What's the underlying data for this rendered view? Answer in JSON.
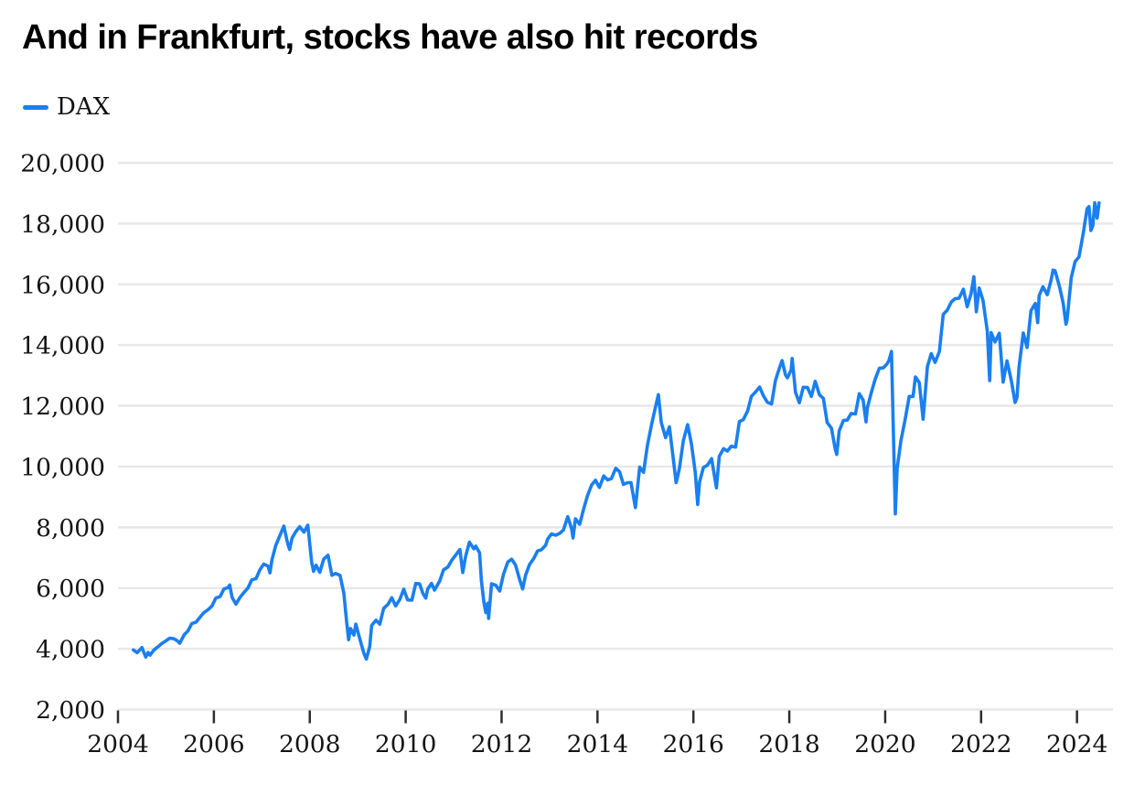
{
  "header": {
    "title": "And in Frankfurt, stocks have also hit records"
  },
  "legend": {
    "series_label": "DAX",
    "swatch_color": "#1a7ff0"
  },
  "colors": {
    "line": "#1a7ff0",
    "grid": "#e8e8e8",
    "tick_mark": "#2e2e2e",
    "axis_text": "#141414",
    "title_text": "#000000",
    "background": "#ffffff"
  },
  "chart_data": {
    "type": "line",
    "title": "And in Frankfurt, stocks have also hit records",
    "legend_position": "top-left",
    "grid": "horizontal-only",
    "x_axis": {
      "label": "",
      "tick_years": [
        2004,
        2006,
        2008,
        2010,
        2012,
        2014,
        2016,
        2018,
        2020,
        2022,
        2024
      ],
      "tick_labels": [
        "2004",
        "2006",
        "2008",
        "2010",
        "2012",
        "2014",
        "2016",
        "2018",
        "2020",
        "2022",
        "2024"
      ],
      "range": [
        2004,
        2024.75
      ]
    },
    "y_axis": {
      "label": "",
      "tick_values": [
        2000,
        4000,
        6000,
        8000,
        10000,
        12000,
        14000,
        16000,
        18000,
        20000
      ],
      "tick_labels": [
        "2,000",
        "4,000",
        "6,000",
        "8,000",
        "10,000",
        "12,000",
        "14,000",
        "16,000",
        "18,000",
        "20,000"
      ],
      "range": [
        2000,
        20000
      ]
    },
    "series": [
      {
        "name": "DAX",
        "color": "#1a7ff0",
        "points": [
          [
            2004.32,
            3960
          ],
          [
            2004.4,
            3870
          ],
          [
            2004.5,
            4040
          ],
          [
            2004.58,
            3725
          ],
          [
            2004.63,
            3880
          ],
          [
            2004.67,
            3790
          ],
          [
            2004.75,
            3960
          ],
          [
            2004.83,
            4060
          ],
          [
            2004.92,
            4180
          ],
          [
            2005.0,
            4260
          ],
          [
            2005.08,
            4350
          ],
          [
            2005.17,
            4330
          ],
          [
            2005.25,
            4250
          ],
          [
            2005.29,
            4180
          ],
          [
            2005.38,
            4460
          ],
          [
            2005.46,
            4590
          ],
          [
            2005.54,
            4830
          ],
          [
            2005.63,
            4880
          ],
          [
            2005.71,
            5040
          ],
          [
            2005.79,
            5190
          ],
          [
            2005.88,
            5290
          ],
          [
            2005.96,
            5410
          ],
          [
            2006.04,
            5670
          ],
          [
            2006.13,
            5720
          ],
          [
            2006.21,
            5970
          ],
          [
            2006.29,
            6010
          ],
          [
            2006.33,
            6100
          ],
          [
            2006.38,
            5690
          ],
          [
            2006.46,
            5470
          ],
          [
            2006.54,
            5680
          ],
          [
            2006.63,
            5860
          ],
          [
            2006.71,
            6000
          ],
          [
            2006.79,
            6270
          ],
          [
            2006.88,
            6310
          ],
          [
            2006.96,
            6600
          ],
          [
            2007.04,
            6790
          ],
          [
            2007.13,
            6720
          ],
          [
            2007.17,
            6500
          ],
          [
            2007.21,
            6920
          ],
          [
            2007.29,
            7400
          ],
          [
            2007.38,
            7740
          ],
          [
            2007.46,
            8040
          ],
          [
            2007.54,
            7460
          ],
          [
            2007.58,
            7270
          ],
          [
            2007.63,
            7640
          ],
          [
            2007.71,
            7860
          ],
          [
            2007.79,
            8020
          ],
          [
            2007.88,
            7840
          ],
          [
            2007.96,
            8070
          ],
          [
            2008.04,
            6850
          ],
          [
            2008.08,
            6550
          ],
          [
            2008.13,
            6750
          ],
          [
            2008.21,
            6520
          ],
          [
            2008.29,
            6950
          ],
          [
            2008.38,
            7080
          ],
          [
            2008.46,
            6420
          ],
          [
            2008.54,
            6480
          ],
          [
            2008.63,
            6420
          ],
          [
            2008.71,
            5830
          ],
          [
            2008.77,
            4870
          ],
          [
            2008.81,
            4300
          ],
          [
            2008.85,
            4670
          ],
          [
            2008.92,
            4450
          ],
          [
            2008.96,
            4810
          ],
          [
            2009.04,
            4340
          ],
          [
            2009.13,
            3840
          ],
          [
            2009.18,
            3660
          ],
          [
            2009.25,
            4080
          ],
          [
            2009.29,
            4770
          ],
          [
            2009.38,
            4940
          ],
          [
            2009.46,
            4810
          ],
          [
            2009.54,
            5330
          ],
          [
            2009.63,
            5460
          ],
          [
            2009.71,
            5680
          ],
          [
            2009.79,
            5410
          ],
          [
            2009.88,
            5630
          ],
          [
            2009.96,
            5960
          ],
          [
            2010.04,
            5610
          ],
          [
            2010.13,
            5600
          ],
          [
            2010.21,
            6150
          ],
          [
            2010.29,
            6140
          ],
          [
            2010.36,
            5820
          ],
          [
            2010.42,
            5670
          ],
          [
            2010.46,
            5970
          ],
          [
            2010.54,
            6150
          ],
          [
            2010.6,
            5930
          ],
          [
            2010.71,
            6230
          ],
          [
            2010.79,
            6600
          ],
          [
            2010.88,
            6690
          ],
          [
            2010.96,
            6910
          ],
          [
            2011.04,
            7080
          ],
          [
            2011.13,
            7270
          ],
          [
            2011.19,
            6510
          ],
          [
            2011.25,
            7040
          ],
          [
            2011.33,
            7510
          ],
          [
            2011.42,
            7290
          ],
          [
            2011.46,
            7380
          ],
          [
            2011.54,
            7160
          ],
          [
            2011.58,
            6240
          ],
          [
            2011.63,
            5540
          ],
          [
            2011.67,
            5190
          ],
          [
            2011.71,
            5500
          ],
          [
            2011.73,
            5000
          ],
          [
            2011.79,
            6140
          ],
          [
            2011.88,
            6090
          ],
          [
            2011.96,
            5900
          ],
          [
            2012.04,
            6460
          ],
          [
            2012.13,
            6860
          ],
          [
            2012.21,
            6950
          ],
          [
            2012.29,
            6760
          ],
          [
            2012.38,
            6260
          ],
          [
            2012.44,
            5970
          ],
          [
            2012.5,
            6420
          ],
          [
            2012.58,
            6770
          ],
          [
            2012.67,
            6970
          ],
          [
            2012.75,
            7220
          ],
          [
            2012.83,
            7260
          ],
          [
            2012.92,
            7410
          ],
          [
            2012.96,
            7610
          ],
          [
            2013.04,
            7780
          ],
          [
            2013.13,
            7740
          ],
          [
            2013.21,
            7800
          ],
          [
            2013.29,
            7910
          ],
          [
            2013.38,
            8350
          ],
          [
            2013.46,
            7960
          ],
          [
            2013.49,
            7650
          ],
          [
            2013.54,
            8280
          ],
          [
            2013.63,
            8100
          ],
          [
            2013.71,
            8590
          ],
          [
            2013.79,
            9030
          ],
          [
            2013.88,
            9400
          ],
          [
            2013.96,
            9550
          ],
          [
            2014.04,
            9310
          ],
          [
            2014.13,
            9690
          ],
          [
            2014.21,
            9560
          ],
          [
            2014.29,
            9600
          ],
          [
            2014.38,
            9940
          ],
          [
            2014.46,
            9830
          ],
          [
            2014.54,
            9410
          ],
          [
            2014.63,
            9470
          ],
          [
            2014.7,
            9470
          ],
          [
            2014.75,
            9000
          ],
          [
            2014.79,
            8650
          ],
          [
            2014.88,
            9980
          ],
          [
            2014.96,
            9810
          ],
          [
            2015.04,
            10690
          ],
          [
            2015.13,
            11400
          ],
          [
            2015.21,
            11970
          ],
          [
            2015.27,
            12370
          ],
          [
            2015.33,
            11450
          ],
          [
            2015.42,
            10950
          ],
          [
            2015.5,
            11310
          ],
          [
            2015.58,
            10260
          ],
          [
            2015.64,
            9470
          ],
          [
            2015.67,
            9660
          ],
          [
            2015.71,
            9950
          ],
          [
            2015.79,
            10850
          ],
          [
            2015.88,
            11380
          ],
          [
            2015.96,
            10740
          ],
          [
            2016.04,
            9800
          ],
          [
            2016.09,
            8750
          ],
          [
            2016.13,
            9500
          ],
          [
            2016.21,
            9970
          ],
          [
            2016.29,
            10040
          ],
          [
            2016.38,
            10260
          ],
          [
            2016.44,
            9680
          ],
          [
            2016.48,
            9300
          ],
          [
            2016.54,
            10340
          ],
          [
            2016.63,
            10590
          ],
          [
            2016.71,
            10510
          ],
          [
            2016.79,
            10670
          ],
          [
            2016.88,
            10640
          ],
          [
            2016.96,
            11480
          ],
          [
            2017.04,
            11540
          ],
          [
            2017.13,
            11830
          ],
          [
            2017.21,
            12310
          ],
          [
            2017.29,
            12440
          ],
          [
            2017.38,
            12620
          ],
          [
            2017.46,
            12330
          ],
          [
            2017.54,
            12120
          ],
          [
            2017.63,
            12060
          ],
          [
            2017.71,
            12830
          ],
          [
            2017.79,
            13230
          ],
          [
            2017.85,
            13490
          ],
          [
            2017.92,
            13020
          ],
          [
            2017.96,
            12920
          ],
          [
            2018.04,
            13190
          ],
          [
            2018.06,
            13560
          ],
          [
            2018.13,
            12440
          ],
          [
            2018.21,
            12100
          ],
          [
            2018.29,
            12610
          ],
          [
            2018.38,
            12600
          ],
          [
            2018.46,
            12310
          ],
          [
            2018.54,
            12810
          ],
          [
            2018.63,
            12360
          ],
          [
            2018.71,
            12250
          ],
          [
            2018.79,
            11450
          ],
          [
            2018.88,
            11260
          ],
          [
            2018.96,
            10560
          ],
          [
            2018.99,
            10400
          ],
          [
            2019.04,
            11170
          ],
          [
            2019.13,
            11520
          ],
          [
            2019.21,
            11530
          ],
          [
            2019.29,
            11750
          ],
          [
            2019.38,
            11730
          ],
          [
            2019.46,
            12400
          ],
          [
            2019.54,
            12190
          ],
          [
            2019.6,
            11470
          ],
          [
            2019.63,
            11940
          ],
          [
            2019.71,
            12430
          ],
          [
            2019.79,
            12870
          ],
          [
            2019.88,
            13240
          ],
          [
            2019.96,
            13250
          ],
          [
            2020.04,
            13380
          ],
          [
            2020.08,
            13500
          ],
          [
            2020.13,
            13790
          ],
          [
            2020.16,
            11890
          ],
          [
            2020.21,
            8440
          ],
          [
            2020.25,
            9940
          ],
          [
            2020.33,
            10860
          ],
          [
            2020.42,
            11590
          ],
          [
            2020.5,
            12310
          ],
          [
            2020.58,
            12310
          ],
          [
            2020.63,
            12950
          ],
          [
            2020.71,
            12760
          ],
          [
            2020.79,
            11560
          ],
          [
            2020.88,
            13290
          ],
          [
            2020.96,
            13720
          ],
          [
            2021.04,
            13430
          ],
          [
            2021.13,
            13790
          ],
          [
            2021.21,
            15010
          ],
          [
            2021.29,
            15140
          ],
          [
            2021.38,
            15420
          ],
          [
            2021.46,
            15530
          ],
          [
            2021.54,
            15540
          ],
          [
            2021.63,
            15840
          ],
          [
            2021.71,
            15260
          ],
          [
            2021.79,
            15690
          ],
          [
            2021.85,
            16250
          ],
          [
            2021.9,
            15100
          ],
          [
            2021.96,
            15880
          ],
          [
            2022.04,
            15470
          ],
          [
            2022.13,
            14460
          ],
          [
            2022.18,
            12830
          ],
          [
            2022.21,
            14410
          ],
          [
            2022.29,
            14100
          ],
          [
            2022.38,
            14390
          ],
          [
            2022.46,
            12780
          ],
          [
            2022.54,
            13480
          ],
          [
            2022.63,
            12840
          ],
          [
            2022.71,
            12110
          ],
          [
            2022.75,
            12280
          ],
          [
            2022.79,
            13250
          ],
          [
            2022.88,
            14400
          ],
          [
            2022.96,
            13920
          ],
          [
            2023.04,
            15130
          ],
          [
            2023.13,
            15370
          ],
          [
            2023.18,
            14740
          ],
          [
            2023.21,
            15630
          ],
          [
            2023.29,
            15920
          ],
          [
            2023.38,
            15660
          ],
          [
            2023.46,
            16150
          ],
          [
            2023.5,
            16470
          ],
          [
            2023.54,
            16450
          ],
          [
            2023.63,
            15950
          ],
          [
            2023.71,
            15390
          ],
          [
            2023.77,
            14690
          ],
          [
            2023.79,
            14810
          ],
          [
            2023.88,
            16220
          ],
          [
            2023.96,
            16750
          ],
          [
            2024.04,
            16900
          ],
          [
            2024.13,
            17680
          ],
          [
            2024.21,
            18490
          ],
          [
            2024.25,
            18560
          ],
          [
            2024.29,
            17770
          ],
          [
            2024.33,
            17930
          ],
          [
            2024.37,
            18690
          ],
          [
            2024.42,
            18180
          ],
          [
            2024.46,
            18680
          ]
        ]
      }
    ]
  }
}
